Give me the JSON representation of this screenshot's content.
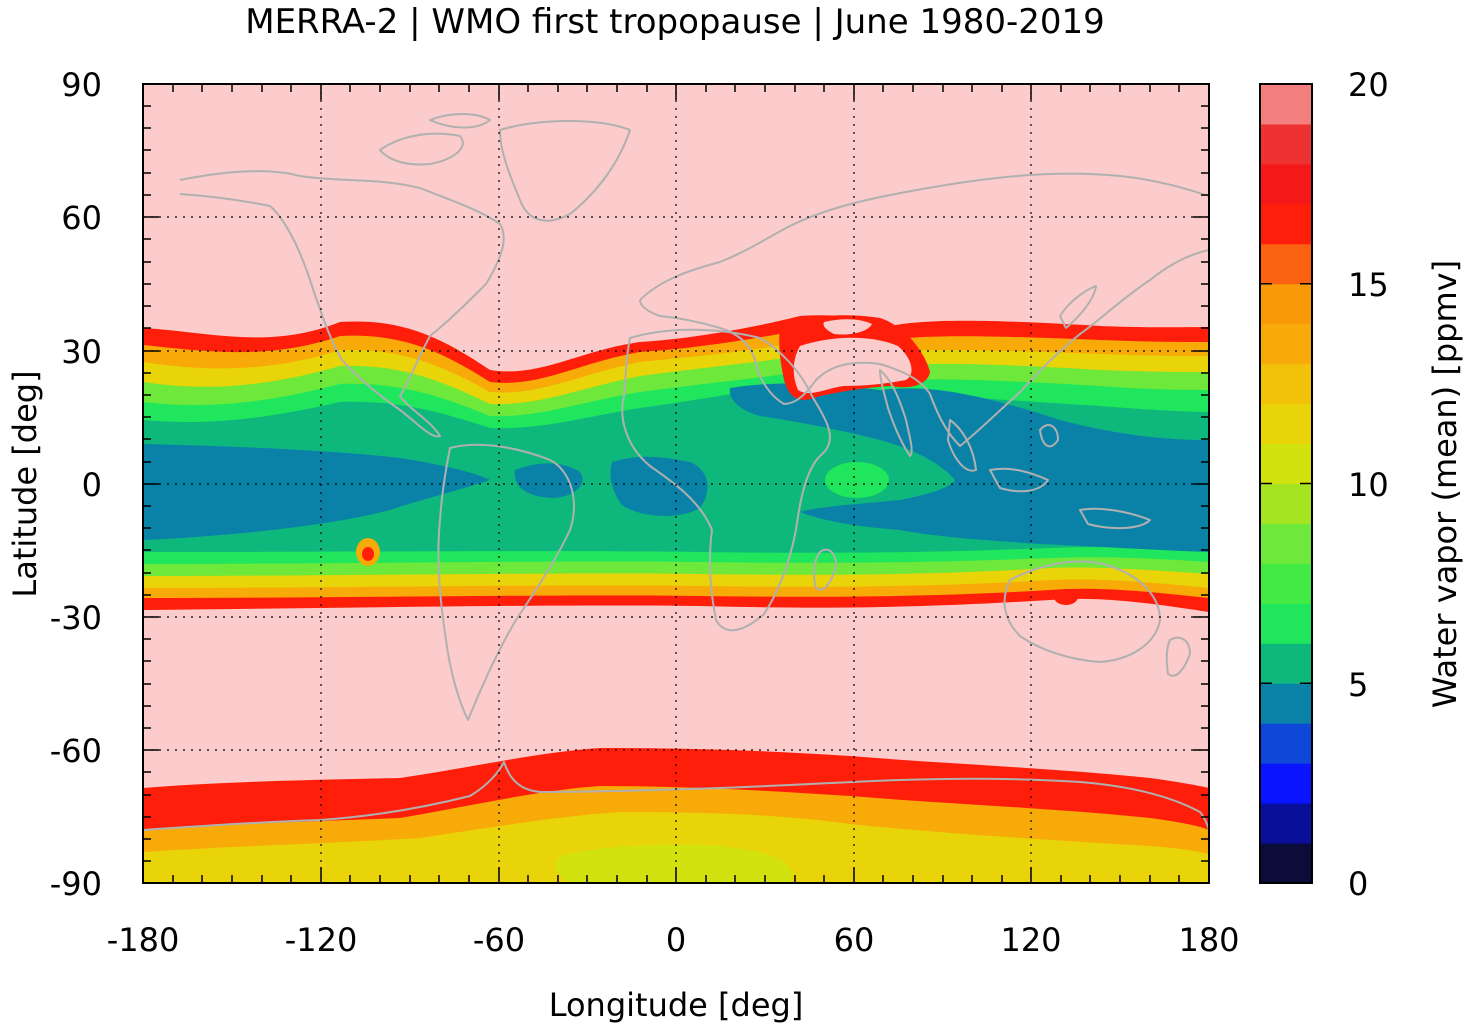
{
  "chart_data": {
    "type": "heatmap",
    "title": "MERRA-2 | WMO first tropopause | June 1980-2019",
    "xlabel": "Longitude [deg]",
    "ylabel": "Latitude [deg]",
    "xlim": [
      -180,
      180
    ],
    "ylim": [
      -90,
      90
    ],
    "xticks": [
      "-180",
      "-120",
      "-60",
      "0",
      "60",
      "120",
      "180"
    ],
    "yticks": [
      "90",
      "60",
      "30",
      "0",
      "-30",
      "-60",
      "-90"
    ],
    "grid": true,
    "colorbar": {
      "label": "Water vapor (mean) [ppmv]",
      "range": [
        0,
        20
      ],
      "ticks": [
        "20",
        "15",
        "10",
        "5",
        "0"
      ],
      "levels": [
        0,
        1,
        2,
        3,
        4,
        5,
        6,
        7,
        8,
        9,
        10,
        11,
        12,
        13,
        14,
        15,
        16,
        17,
        18,
        19,
        20
      ],
      "colors": [
        "#0b0c3a",
        "#0a0f9a",
        "#0a14ff",
        "#0e48d8",
        "#0a82a8",
        "#0eb87c",
        "#1fe65c",
        "#44ea44",
        "#6ee83a",
        "#a6e422",
        "#d2e20e",
        "#e8d408",
        "#f2c10a",
        "#f7aa08",
        "#f89a08",
        "#fb6210",
        "#ff1e0a",
        "#f51818",
        "#ee3232",
        "#f47f7f"
      ],
      "overflow_color": "#fccbcb"
    },
    "zonal_pattern_ppmv": [
      {
        "lat": -90,
        "value": 10.5
      },
      {
        "lat": -80,
        "value": 11.5
      },
      {
        "lat": -70,
        "value": 16
      },
      {
        "lat": -62,
        "value": 20
      },
      {
        "lat": -28,
        "value": 20
      },
      {
        "lat": -25,
        "value": 14
      },
      {
        "lat": -15,
        "value": 6
      },
      {
        "lat": 0,
        "value": 4.5
      },
      {
        "lat": 10,
        "value": 5
      },
      {
        "lat": 25,
        "value": 8
      },
      {
        "lat": 32,
        "value": 15
      },
      {
        "lat": 36,
        "value": 20
      },
      {
        "lat": 90,
        "value": 20
      }
    ],
    "colors": {
      "coastline": "#b0b0b0",
      "axis": "#000000"
    }
  }
}
